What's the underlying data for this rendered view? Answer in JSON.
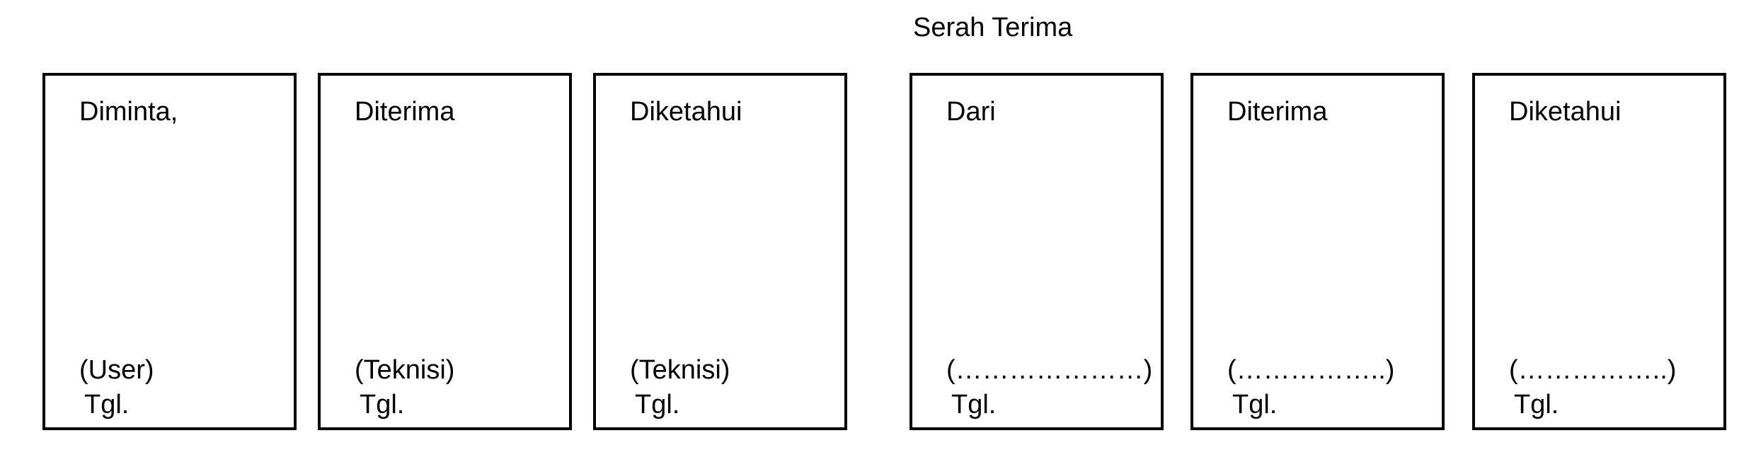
{
  "heading": "Serah Terima",
  "boxes": [
    {
      "title": "Diminta,",
      "name": "(User)",
      "date": "Tgl."
    },
    {
      "title": "Diterima",
      "name": "(Teknisi)",
      "date": "Tgl."
    },
    {
      "title": "Diketahui",
      "name": "(Teknisi)",
      "date": "Tgl."
    },
    {
      "title": "Dari",
      "name": "(…………………)",
      "date": "Tgl."
    },
    {
      "title": "Diterima",
      "name": "(……………..)",
      "date": "Tgl."
    },
    {
      "title": "Diketahui",
      "name": "(……………..)",
      "date": "Tgl."
    }
  ]
}
